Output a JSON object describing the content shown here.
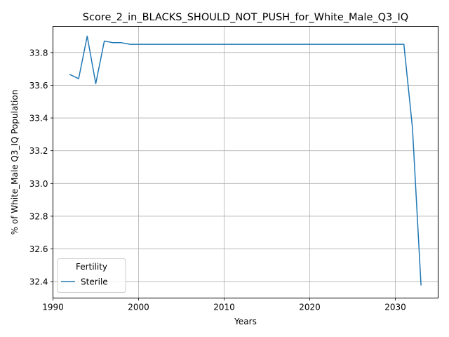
{
  "chart_data": {
    "type": "line",
    "title": "Score_2_in_BLACKS_SHOULD_NOT_PUSH_for_White_Male_Q3_IQ",
    "xlabel": "Years",
    "ylabel": "% of White_Male Q3_IQ Population",
    "xlim": [
      1990,
      2035
    ],
    "ylim": [
      32.3,
      33.96
    ],
    "xticks": [
      1990,
      2000,
      2010,
      2020,
      2030
    ],
    "yticks": [
      32.4,
      32.6,
      32.8,
      33.0,
      33.2,
      33.4,
      33.6,
      33.8
    ],
    "grid": true,
    "legend": {
      "title": "Fertility",
      "placement": "lower-left"
    },
    "series": [
      {
        "name": "Sterile",
        "color": "#1f77b4",
        "x": [
          1992,
          1993,
          1994,
          1995,
          1996,
          1997,
          1998,
          1999,
          2000,
          2005,
          2010,
          2015,
          2020,
          2025,
          2030,
          2031,
          2032,
          2033
        ],
        "y": [
          33.665,
          33.64,
          33.9,
          33.61,
          33.87,
          33.86,
          33.86,
          33.85,
          33.85,
          33.85,
          33.85,
          33.85,
          33.85,
          33.85,
          33.85,
          33.85,
          33.34,
          32.38
        ]
      }
    ]
  }
}
